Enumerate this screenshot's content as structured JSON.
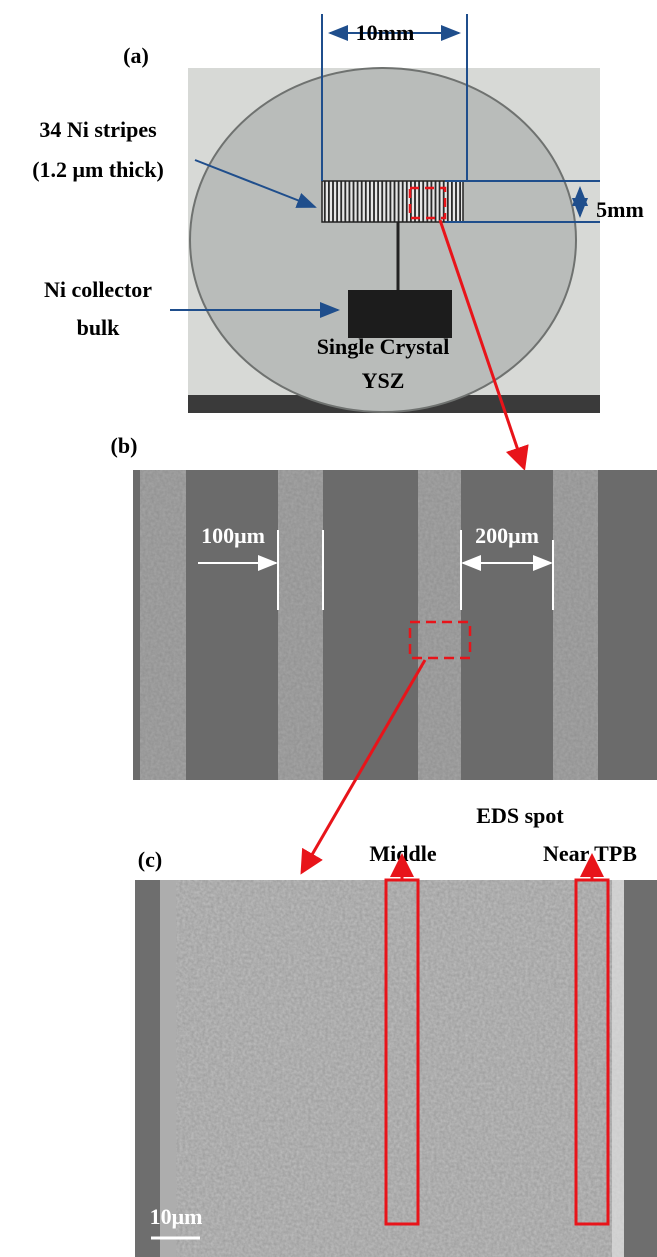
{
  "panels": {
    "a": {
      "label": "(a)",
      "width_dimension": "10mm",
      "height_dimension": "5mm",
      "stripes_label": [
        "34 Ni stripes",
        "(1.2 μm thick)"
      ],
      "collector_label": [
        "Ni collector",
        "bulk"
      ],
      "substrate_label": [
        "Single Crystal",
        "YSZ"
      ]
    },
    "b": {
      "label": "(b)",
      "stripe_width": "100μm",
      "gap_width": "200μm"
    },
    "c": {
      "label": "(c)",
      "eds_title": "EDS spot",
      "spots": [
        "Middle",
        "Near TPB"
      ],
      "scale_bar": "10μm"
    }
  }
}
